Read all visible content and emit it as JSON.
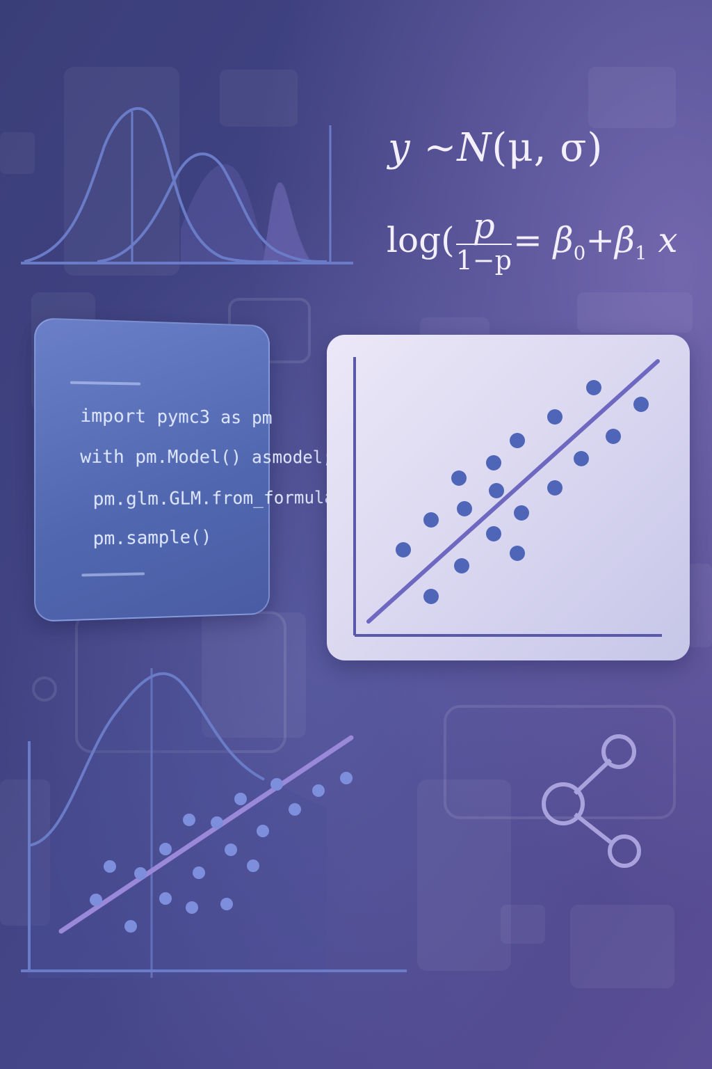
{
  "formulas": {
    "normal": {
      "y": "y",
      "tilde": "~",
      "N": "N",
      "args": "(μ, σ)"
    },
    "logit": {
      "log": "log",
      "paren_open": "(",
      "numerator": "p",
      "denominator": "1−p",
      "equals": "=",
      "beta0": "β",
      "sub0": "0",
      "plus": "+",
      "beta1": "β",
      "sub1": "1",
      "x": "x"
    }
  },
  "code": {
    "lines": [
      "import pymc3 as pm",
      "with pm.Model() asmodel;",
      "pm.glm.GLM.from_formula",
      "pm.sample()"
    ]
  },
  "colors": {
    "bg_dark": "#3a3f78",
    "bg_light": "#6a5fa0",
    "curve": "#6a7cc8",
    "dot": "#4f66b8",
    "line": "#6f68c0",
    "dot_light": "#7d8fdc",
    "line_light": "#9a88d8"
  },
  "icons": {
    "share": "share-icon"
  }
}
